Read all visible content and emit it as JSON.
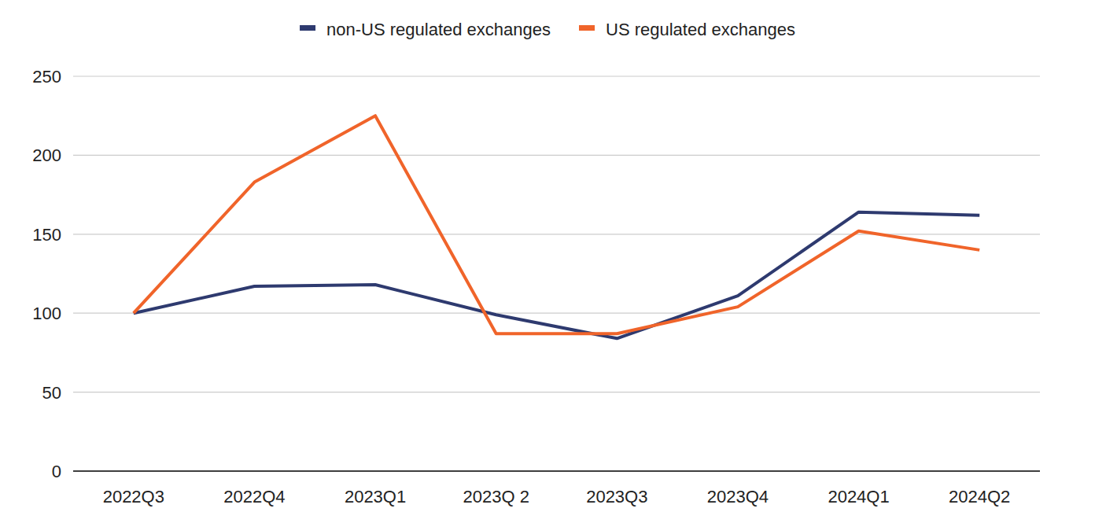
{
  "chart_data": {
    "type": "line",
    "categories": [
      "2022Q3",
      "2022Q4",
      "2023Q1",
      "2023Q 2",
      "2023Q3",
      "2023Q4",
      "2024Q1",
      "2024Q2"
    ],
    "series": [
      {
        "name": "non-US regulated exchanges",
        "color": "#2e3a6f",
        "values": [
          100,
          117,
          118,
          99,
          84,
          111,
          164,
          162
        ]
      },
      {
        "name": "US regulated exchanges",
        "color": "#f0642a",
        "values": [
          100,
          183,
          225,
          87,
          87,
          104,
          152,
          140
        ]
      }
    ],
    "ylim": [
      0,
      250
    ],
    "yticks": [
      0,
      50,
      100,
      150,
      200,
      250
    ],
    "grid": true,
    "legend": "top"
  }
}
